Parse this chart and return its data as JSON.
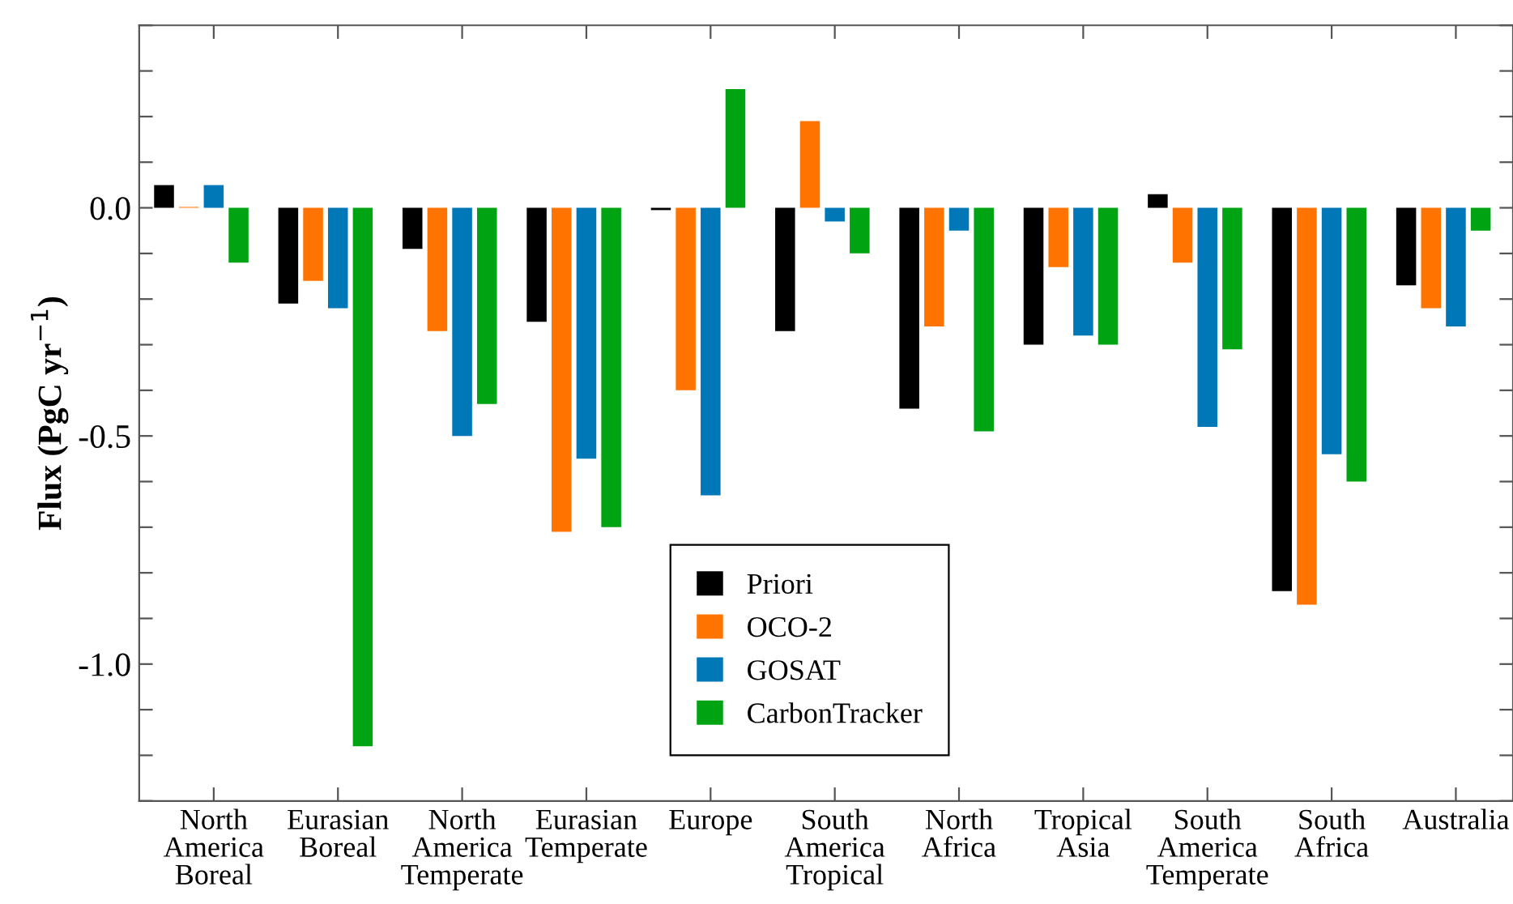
{
  "chart_data": {
    "type": "bar",
    "ylabel": "Flux (PgC yr$^{−1}$)",
    "categories": [
      "North\nAmerica\nBoreal",
      "Eurasian\nBoreal",
      "North\nAmerica\nTemperate",
      "Eurasian\nTemperate",
      "Europe",
      "South\nAmerica\nTropical",
      "North\nAfrica",
      "Tropical\nAsia",
      "South\nAmerica\nTemperate",
      "South\nAfrica",
      "Australia"
    ],
    "series": [
      {
        "name": "Priori",
        "color": "#000000",
        "values": [
          0.05,
          -0.21,
          -0.09,
          -0.25,
          -0.005,
          -0.27,
          -0.44,
          -0.3,
          0.03,
          -0.84,
          -0.17
        ]
      },
      {
        "name": "OCO-2",
        "color": "#ff7400",
        "values": [
          0.002,
          -0.16,
          -0.27,
          -0.71,
          -0.4,
          0.19,
          -0.26,
          -0.13,
          -0.12,
          -0.87,
          -0.22
        ]
      },
      {
        "name": "GOSAT",
        "color": "#0077b6",
        "values": [
          0.05,
          -0.22,
          -0.5,
          -0.55,
          -0.63,
          -0.03,
          -0.05,
          -0.28,
          -0.48,
          -0.54,
          -0.26
        ]
      },
      {
        "name": "CarbonTracker",
        "color": "#00a412",
        "values": [
          -0.12,
          -1.18,
          -0.43,
          -0.7,
          0.26,
          -0.1,
          -0.49,
          -0.3,
          -0.31,
          -0.6,
          -0.05
        ]
      }
    ],
    "ylim": [
      -1.3,
      0.4
    ],
    "yticks": [
      {
        "value": -1.3,
        "label": null
      },
      {
        "value": -1.2,
        "label": null
      },
      {
        "value": -1.1,
        "label": null
      },
      {
        "value": -1.0,
        "label": "-1.0"
      },
      {
        "value": -0.9,
        "label": null
      },
      {
        "value": -0.8,
        "label": null
      },
      {
        "value": -0.7,
        "label": null
      },
      {
        "value": -0.6,
        "label": null
      },
      {
        "value": -0.5,
        "label": "-0.5"
      },
      {
        "value": -0.4,
        "label": null
      },
      {
        "value": -0.3,
        "label": null
      },
      {
        "value": -0.2,
        "label": null
      },
      {
        "value": -0.1,
        "label": null
      },
      {
        "value": 0.0,
        "label": "0.0"
      },
      {
        "value": 0.1,
        "label": null
      },
      {
        "value": 0.2,
        "label": null
      },
      {
        "value": 0.3,
        "label": null
      },
      {
        "value": 0.4,
        "label": null
      }
    ],
    "grid": false,
    "legend": "bottom"
  }
}
